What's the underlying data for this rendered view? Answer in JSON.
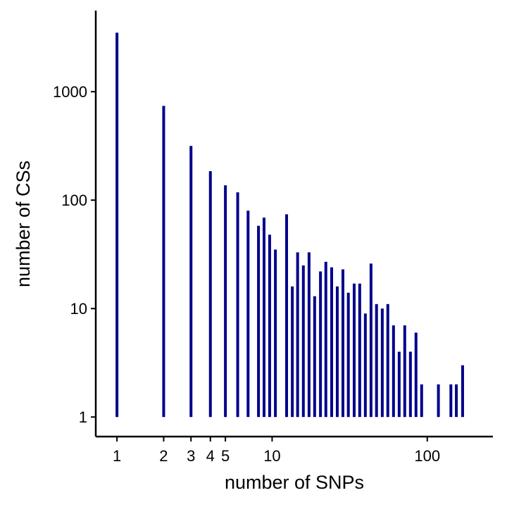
{
  "chart_data": {
    "type": "bar",
    "x_label": "number of SNPs",
    "y_label": "number of CSs",
    "x": [
      1,
      2,
      3,
      4,
      5,
      6,
      7,
      8.17,
      8.87,
      9.64,
      10.5,
      12.4,
      13.5,
      14.6,
      15.9,
      17.3,
      18.8,
      20.5,
      22.2,
      24.2,
      26.3,
      28.6,
      31.0,
      33.8,
      36.7,
      39.9,
      43.4,
      47.1,
      51.3,
      55.7,
      60.6,
      65.9,
      71.6,
      77.9,
      84.6,
      92.0,
      118,
      142,
      154,
      169
    ],
    "values": [
      3500,
      740,
      316,
      185,
      137,
      118,
      80,
      58,
      69,
      48,
      35,
      74,
      16,
      33,
      25,
      33,
      13,
      22,
      27,
      24,
      16,
      23,
      14,
      17,
      17,
      9,
      26,
      11,
      10,
      11,
      7,
      4,
      7,
      4,
      6,
      2,
      2,
      2,
      2,
      3
    ],
    "color": "#00008b",
    "xlog": true,
    "ylog": true,
    "xlim": [
      0.73,
      265
    ],
    "ylim": [
      0.66,
      5600
    ],
    "xticks": [
      1,
      2,
      3,
      4,
      5,
      10,
      100
    ],
    "yticks": [
      1,
      10,
      100,
      1000
    ]
  }
}
